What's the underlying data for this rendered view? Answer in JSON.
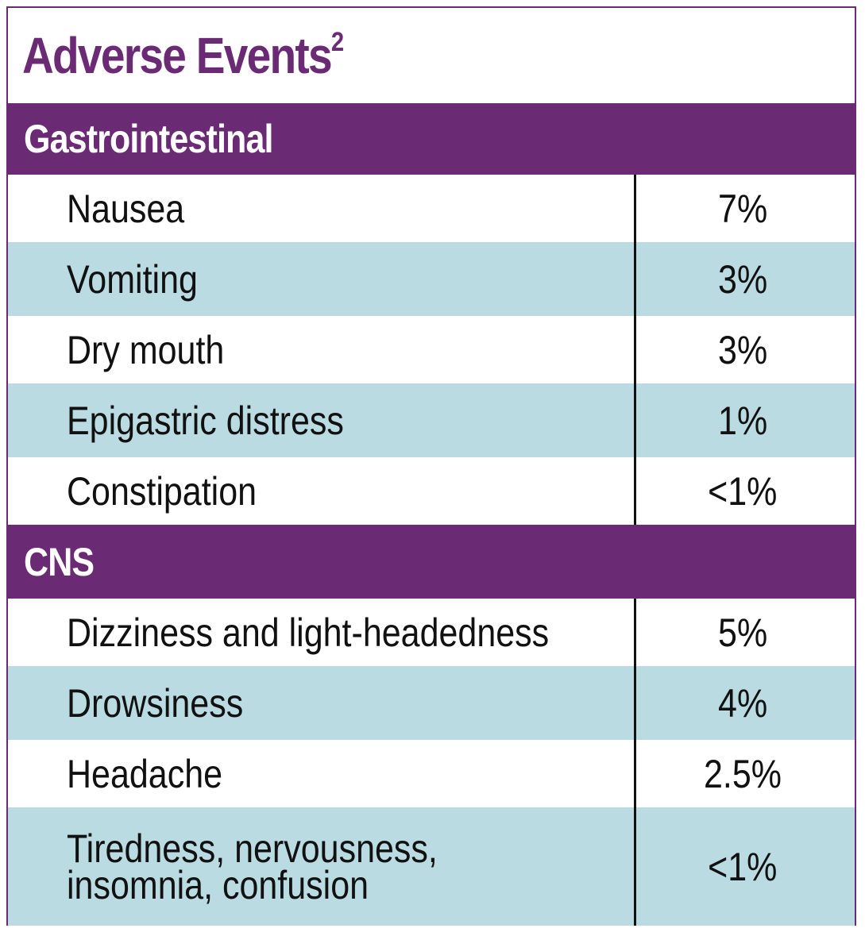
{
  "title": "Adverse Events",
  "title_superscript": "2",
  "sections": [
    {
      "name": "Gastrointestinal",
      "rows": [
        {
          "label": "Nausea",
          "value": "7%"
        },
        {
          "label": "Vomiting",
          "value": "3%"
        },
        {
          "label": "Dry mouth",
          "value": "3%"
        },
        {
          "label": "Epigastric distress",
          "value": "1%"
        },
        {
          "label": "Constipation",
          "value": "<1%"
        }
      ]
    },
    {
      "name": "CNS",
      "rows": [
        {
          "label": "Dizziness and light-headedness",
          "value": "5%"
        },
        {
          "label": "Drowsiness",
          "value": "4%"
        },
        {
          "label": "Headache",
          "value": "2.5%"
        },
        {
          "label_line1": "Tiredness, nervousness,",
          "label_line2": "insomnia, confusion",
          "value": "<1%"
        }
      ]
    }
  ],
  "colors": {
    "accent": "#6b2a74",
    "alt_row": "#b9dbe1",
    "text": "#111111"
  }
}
